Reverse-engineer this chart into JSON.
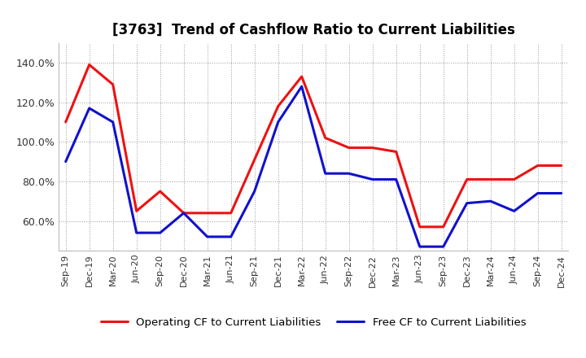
{
  "title": "[3763]  Trend of Cashflow Ratio to Current Liabilities",
  "x_labels": [
    "Sep-19",
    "Dec-19",
    "Mar-20",
    "Jun-20",
    "Sep-20",
    "Dec-20",
    "Mar-21",
    "Jun-21",
    "Sep-21",
    "Dec-21",
    "Mar-22",
    "Jun-22",
    "Sep-22",
    "Dec-22",
    "Mar-23",
    "Jun-23",
    "Sep-23",
    "Dec-23",
    "Mar-24",
    "Jun-24",
    "Sep-24",
    "Dec-24"
  ],
  "operating_cf": [
    1.1,
    1.39,
    1.29,
    0.65,
    0.75,
    0.64,
    0.64,
    0.64,
    0.91,
    1.18,
    1.33,
    1.02,
    0.97,
    0.97,
    0.95,
    0.57,
    0.57,
    0.81,
    0.81,
    0.81,
    0.88,
    0.88
  ],
  "free_cf": [
    0.9,
    1.17,
    1.1,
    0.54,
    0.54,
    0.64,
    0.52,
    0.52,
    0.75,
    1.1,
    1.28,
    0.84,
    0.84,
    0.81,
    0.81,
    0.47,
    0.47,
    0.69,
    0.7,
    0.65,
    0.74,
    0.74
  ],
  "operating_color": "#ee1111",
  "free_color": "#1111cc",
  "ylim_min": 0.45,
  "ylim_max": 1.5,
  "yticks": [
    0.6,
    0.8,
    1.0,
    1.2,
    1.4
  ],
  "ytick_labels": [
    "60.0%",
    "80.0%",
    "100.0%",
    "120.0%",
    "140.0%"
  ],
  "line_width": 2.2,
  "legend_op": "Operating CF to Current Liabilities",
  "legend_free": "Free CF to Current Liabilities",
  "bg_color": "#ffffff",
  "grid_color": "#999999"
}
